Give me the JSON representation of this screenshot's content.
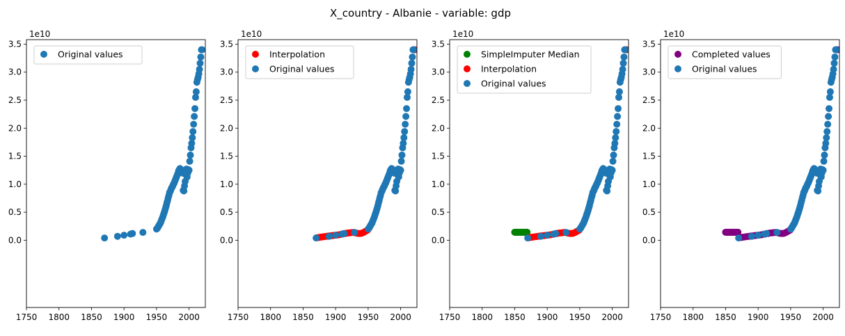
{
  "figure": {
    "title": "X_country - Albanie - variable: gdp"
  },
  "colors": {
    "original": "#1f77b4",
    "interpolation": "#ff0000",
    "median": "#008000",
    "completed": "#800080"
  },
  "chart_data": [
    {
      "type": "scatter",
      "xlim": [
        1750,
        2025
      ],
      "ylim": [
        -1.2,
        3.58
      ],
      "y_scale_label": "1e10",
      "x_ticks": [
        1750,
        1800,
        1850,
        1900,
        1950,
        2000
      ],
      "y_ticks": [
        0.0,
        0.5,
        1.0,
        1.5,
        2.0,
        2.5,
        3.0,
        3.5
      ],
      "legend": {
        "placement": "upper-left",
        "entries": [
          "Original values"
        ]
      },
      "series": [
        {
          "name": "Original values",
          "color": "#1f77b4",
          "x": "orig",
          "y": "orig"
        }
      ]
    },
    {
      "type": "scatter",
      "xlim": [
        1750,
        2025
      ],
      "ylim": [
        -1.2,
        3.58
      ],
      "y_scale_label": "1e10",
      "x_ticks": [
        1750,
        1800,
        1850,
        1900,
        1950,
        2000
      ],
      "y_ticks": [
        0.0,
        0.5,
        1.0,
        1.5,
        2.0,
        2.5,
        3.0,
        3.5
      ],
      "legend": {
        "placement": "upper-left",
        "entries": [
          "Interpolation",
          "Original values"
        ]
      },
      "series": [
        {
          "name": "Interpolation",
          "color": "#ff0000",
          "x": "interp",
          "y": "interp"
        },
        {
          "name": "Original values",
          "color": "#1f77b4",
          "x": "orig",
          "y": "orig"
        }
      ]
    },
    {
      "type": "scatter",
      "xlim": [
        1750,
        2025
      ],
      "ylim": [
        -1.2,
        3.58
      ],
      "y_scale_label": "1e10",
      "x_ticks": [
        1750,
        1800,
        1850,
        1900,
        1950,
        2000
      ],
      "y_ticks": [
        0.0,
        0.5,
        1.0,
        1.5,
        2.0,
        2.5,
        3.0,
        3.5
      ],
      "legend": {
        "placement": "upper-left",
        "entries": [
          "SimpleImputer Median",
          "Interpolation",
          "Original values"
        ]
      },
      "series": [
        {
          "name": "SimpleImputer Median",
          "color": "#008000",
          "x": "median",
          "y": "median"
        },
        {
          "name": "Interpolation",
          "color": "#ff0000",
          "x": "interp",
          "y": "interp"
        },
        {
          "name": "Original values",
          "color": "#1f77b4",
          "x": "orig",
          "y": "orig"
        }
      ]
    },
    {
      "type": "scatter",
      "xlim": [
        1750,
        2025
      ],
      "ylim": [
        -1.2,
        3.58
      ],
      "y_scale_label": "1e10",
      "x_ticks": [
        1750,
        1800,
        1850,
        1900,
        1950,
        2000
      ],
      "y_ticks": [
        0.0,
        0.5,
        1.0,
        1.5,
        2.0,
        2.5,
        3.0,
        3.5
      ],
      "legend": {
        "placement": "upper-left",
        "entries": [
          "Completed values",
          "Original values"
        ]
      },
      "series": [
        {
          "name": "Completed values",
          "color": "#800080",
          "x": "completed",
          "y": "completed"
        },
        {
          "name": "Original values",
          "color": "#1f77b4",
          "x": "orig",
          "y": "orig"
        }
      ]
    }
  ],
  "points": {
    "orig": {
      "x": [
        1870,
        1890,
        1900,
        1910,
        1913,
        1929,
        1950,
        1951,
        1952,
        1953,
        1954,
        1955,
        1956,
        1957,
        1958,
        1959,
        1960,
        1961,
        1962,
        1963,
        1964,
        1965,
        1966,
        1967,
        1968,
        1969,
        1970,
        1971,
        1972,
        1973,
        1974,
        1975,
        1976,
        1977,
        1978,
        1979,
        1980,
        1981,
        1982,
        1983,
        1984,
        1985,
        1986,
        1987,
        1988,
        1989,
        1990,
        1991,
        1992,
        1993,
        1994,
        1995,
        1996,
        1997,
        1998,
        1999,
        2000,
        2001,
        2002,
        2003,
        2004,
        2005,
        2006,
        2007,
        2008,
        2009,
        2010,
        2011,
        2012,
        2013,
        2014,
        2015,
        2016,
        2017,
        2018,
        2019,
        2020
      ],
      "y": [
        0.04,
        0.07,
        0.09,
        0.11,
        0.12,
        0.14,
        0.2,
        0.21,
        0.23,
        0.25,
        0.27,
        0.29,
        0.31,
        0.34,
        0.37,
        0.4,
        0.43,
        0.47,
        0.5,
        0.54,
        0.58,
        0.62,
        0.67,
        0.71,
        0.76,
        0.8,
        0.85,
        0.87,
        0.9,
        0.93,
        0.95,
        0.97,
        1.0,
        1.02,
        1.05,
        1.08,
        1.11,
        1.14,
        1.17,
        1.2,
        1.24,
        1.26,
        1.28,
        1.27,
        1.25,
        1.24,
        1.2,
        0.89,
        0.88,
        0.97,
        1.05,
        1.17,
        1.27,
        1.13,
        1.2,
        1.26,
        1.25,
        1.41,
        1.52,
        1.65,
        1.73,
        1.83,
        1.94,
        2.07,
        2.21,
        2.35,
        2.55,
        2.65,
        2.82,
        2.87,
        2.91,
        2.97,
        3.05,
        3.16,
        3.27,
        3.4,
        3.4
      ]
    },
    "interp": {
      "x": [
        1871,
        1874,
        1877,
        1880,
        1883,
        1886,
        1889,
        1892,
        1895,
        1898,
        1902,
        1905,
        1908,
        1911,
        1915,
        1918,
        1921,
        1924,
        1927,
        1931,
        1934,
        1937,
        1940,
        1943,
        1946,
        1949,
        2021,
        2022
      ],
      "y": [
        0.045,
        0.05,
        0.055,
        0.06,
        0.065,
        0.07,
        0.075,
        0.078,
        0.083,
        0.088,
        0.093,
        0.098,
        0.105,
        0.112,
        0.12,
        0.128,
        0.132,
        0.136,
        0.14,
        0.13,
        0.122,
        0.12,
        0.125,
        0.14,
        0.16,
        0.18,
        3.4,
        3.4
      ]
    },
    "median": {
      "x": [
        1850,
        1851,
        1852,
        1853,
        1854,
        1855,
        1856,
        1857,
        1858,
        1859,
        1860,
        1861,
        1862,
        1863,
        1864,
        1865,
        1866,
        1867,
        1868,
        1869
      ],
      "y": [
        0.143,
        0.143,
        0.143,
        0.143,
        0.143,
        0.143,
        0.143,
        0.143,
        0.143,
        0.143,
        0.143,
        0.143,
        0.143,
        0.143,
        0.143,
        0.143,
        0.143,
        0.143,
        0.143,
        0.143
      ]
    },
    "completed": {
      "x": [
        1850,
        1851,
        1852,
        1853,
        1854,
        1855,
        1856,
        1857,
        1858,
        1859,
        1860,
        1861,
        1862,
        1863,
        1864,
        1865,
        1866,
        1867,
        1868,
        1869,
        1871,
        1874,
        1877,
        1880,
        1883,
        1886,
        1889,
        1892,
        1895,
        1898,
        1902,
        1905,
        1908,
        1911,
        1915,
        1918,
        1921,
        1924,
        1927,
        1931,
        1934,
        1937,
        1940,
        1943,
        1946,
        1949,
        2021,
        2022
      ],
      "y": [
        0.143,
        0.143,
        0.143,
        0.143,
        0.143,
        0.143,
        0.143,
        0.143,
        0.143,
        0.143,
        0.143,
        0.143,
        0.143,
        0.143,
        0.143,
        0.143,
        0.143,
        0.143,
        0.143,
        0.143,
        0.045,
        0.05,
        0.055,
        0.06,
        0.065,
        0.07,
        0.075,
        0.078,
        0.083,
        0.088,
        0.093,
        0.098,
        0.105,
        0.112,
        0.12,
        0.128,
        0.132,
        0.136,
        0.14,
        0.13,
        0.122,
        0.12,
        0.125,
        0.14,
        0.16,
        0.18,
        3.4,
        3.4
      ]
    }
  }
}
